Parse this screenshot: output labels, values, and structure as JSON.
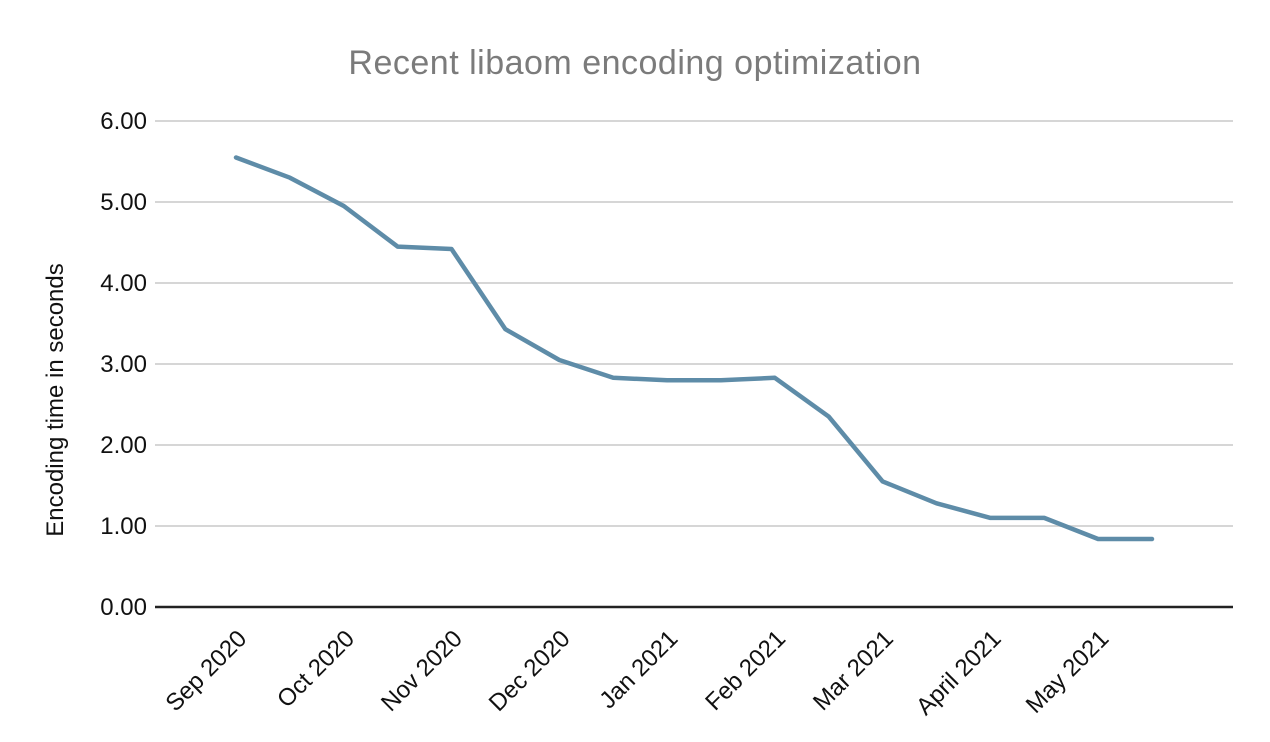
{
  "page": {
    "background": "#ffffff"
  },
  "chart_data": {
    "type": "line",
    "title": "Recent libaom encoding optimization",
    "xlabel": "",
    "ylabel": "Encoding time in seconds",
    "x_tick_labels": [
      "Sep 2020",
      "Oct 2020",
      "Nov 2020",
      "Dec 2020",
      "Jan 2021",
      "Feb 2021",
      "Mar 2021",
      "April 2021",
      "May 2021"
    ],
    "x_tick_point_indices": [
      0,
      2,
      4,
      6,
      8,
      10,
      12,
      14,
      16
    ],
    "points_per_month": 2,
    "series": [
      {
        "name": "Encoding time in seconds",
        "color": "#5e8ca8",
        "values": [
          5.55,
          5.3,
          4.95,
          4.45,
          4.42,
          3.43,
          3.05,
          2.83,
          2.8,
          2.8,
          2.83,
          2.35,
          1.55,
          1.28,
          1.1,
          1.1,
          0.84,
          0.84
        ]
      }
    ],
    "y_ticks": [
      "0.00",
      "1.00",
      "2.00",
      "3.00",
      "4.00",
      "5.00",
      "6.00"
    ],
    "ylim": [
      0,
      6
    ],
    "grid": true,
    "legend": "none",
    "x_label_rotation_deg": -45
  },
  "colors": {
    "title": "#7b7b7b",
    "tick_text": "#111111",
    "gridline": "#d6d6d6",
    "axis_line": "#222222",
    "series_line": "#5e8ca8"
  }
}
